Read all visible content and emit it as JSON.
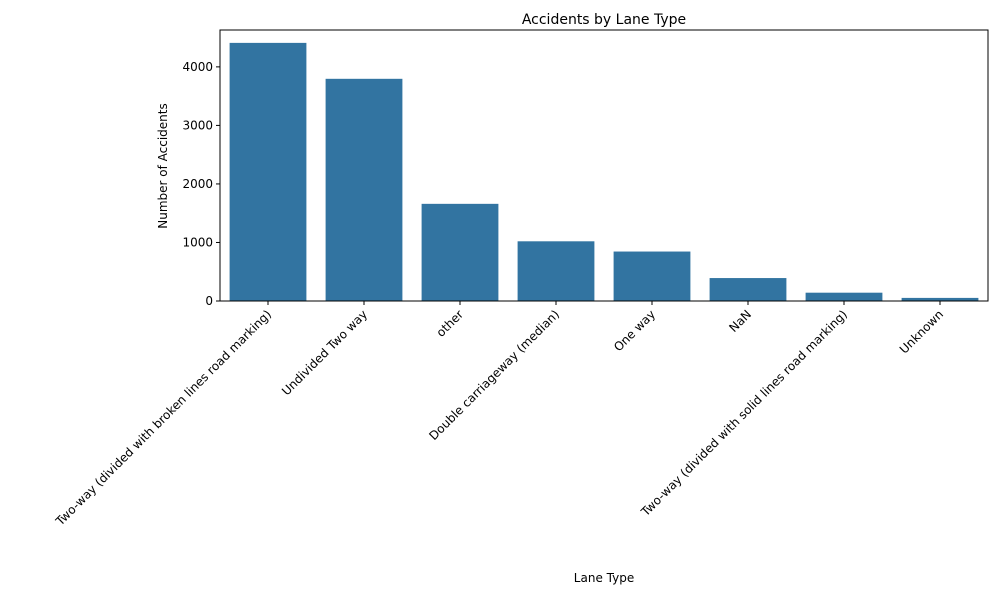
{
  "chart_data": {
    "type": "bar",
    "title": "Accidents by Lane Type",
    "xlabel": "Lane Type",
    "ylabel": "Number of Accidents",
    "categories": [
      "Two-way (divided with broken lines road marking)",
      "Undivided Two way",
      "other",
      "Double carriageway (median)",
      "One way",
      "NaN",
      "Two-way (divided with solid lines road marking)",
      "Unknown"
    ],
    "values": [
      4410,
      3796,
      1660,
      1020,
      845,
      392,
      142,
      53
    ],
    "ylim": [
      0,
      4630
    ],
    "yticks": [
      0,
      1000,
      2000,
      3000,
      4000
    ],
    "bar_color": "#3274a1",
    "grid": false
  }
}
